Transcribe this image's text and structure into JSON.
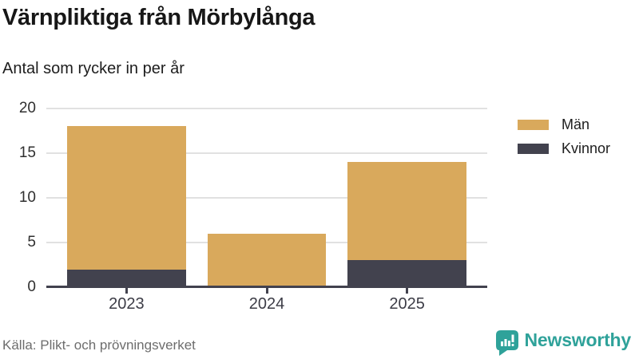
{
  "header": {
    "title": "Värnpliktiga från Mörbylånga",
    "subtitle": "Antal som rycker in per år"
  },
  "chart_data": {
    "type": "bar",
    "stacked": true,
    "title": "Värnpliktiga från Mörbylånga",
    "subtitle": "Antal som rycker in per år",
    "categories": [
      "2023",
      "2024",
      "2025"
    ],
    "series": [
      {
        "name": "Män",
        "color": "#D9A95C",
        "values": [
          16,
          6,
          11
        ]
      },
      {
        "name": "Kvinnor",
        "color": "#42424E",
        "values": [
          2,
          0,
          3
        ]
      }
    ],
    "stack_order_bottom_to_top": [
      "Kvinnor",
      "Män"
    ],
    "totals": [
      18,
      6,
      14
    ],
    "ylim": [
      0,
      20
    ],
    "yticks": [
      0,
      5,
      10,
      15,
      20
    ],
    "grid": true,
    "legend_position": "top-right"
  },
  "footer": {
    "source": "Källa: Plikt- och prövningsverket",
    "brand": "Newsworthy"
  },
  "colors": {
    "men": "#D9A95C",
    "women": "#42424E",
    "gridline": "#E1E1E1",
    "axis": "#42424E",
    "brand_teal": "#2FA29A",
    "source_text": "#6D6D6D"
  }
}
